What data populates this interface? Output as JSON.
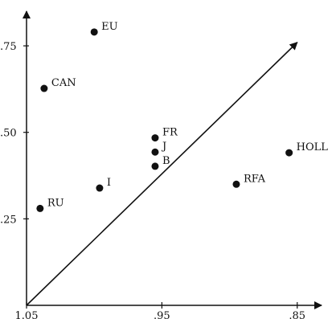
{
  "chart_data": {
    "type": "scatter",
    "title": "",
    "xlabel": "",
    "ylabel": "",
    "x_axis_reversed": true,
    "xlim": [
      1.05,
      0.835
    ],
    "ylim": [
      0.0,
      0.85
    ],
    "x_ticks": [
      {
        "value": 1.05,
        "label": "1.05"
      },
      {
        "value": 0.95,
        "label": ".95"
      },
      {
        "value": 0.85,
        "label": ".85"
      }
    ],
    "y_ticks": [
      {
        "value": 0.25,
        "label": ".25"
      },
      {
        "value": 0.5,
        "label": ".50"
      },
      {
        "value": 0.75,
        "label": ".75"
      }
    ],
    "grid": false,
    "legend": "none",
    "points": [
      {
        "label": "EU",
        "x": 1.0,
        "y": 0.79
      },
      {
        "label": "CAN",
        "x": 1.037,
        "y": 0.627
      },
      {
        "label": "FR",
        "x": 0.955,
        "y": 0.484
      },
      {
        "label": "J",
        "x": 0.955,
        "y": 0.443
      },
      {
        "label": "B",
        "x": 0.955,
        "y": 0.402
      },
      {
        "label": "HOLL",
        "x": 0.856,
        "y": 0.441
      },
      {
        "label": "RFA",
        "x": 0.895,
        "y": 0.35
      },
      {
        "label": "I",
        "x": 0.996,
        "y": 0.339
      },
      {
        "label": "RU",
        "x": 1.04,
        "y": 0.28
      }
    ],
    "diagonal_arrow": {
      "from": [
        1.05,
        0.0
      ],
      "to": [
        0.85,
        0.76
      ]
    },
    "colors": {
      "ink": "#111111",
      "background": "#ffffff"
    }
  }
}
